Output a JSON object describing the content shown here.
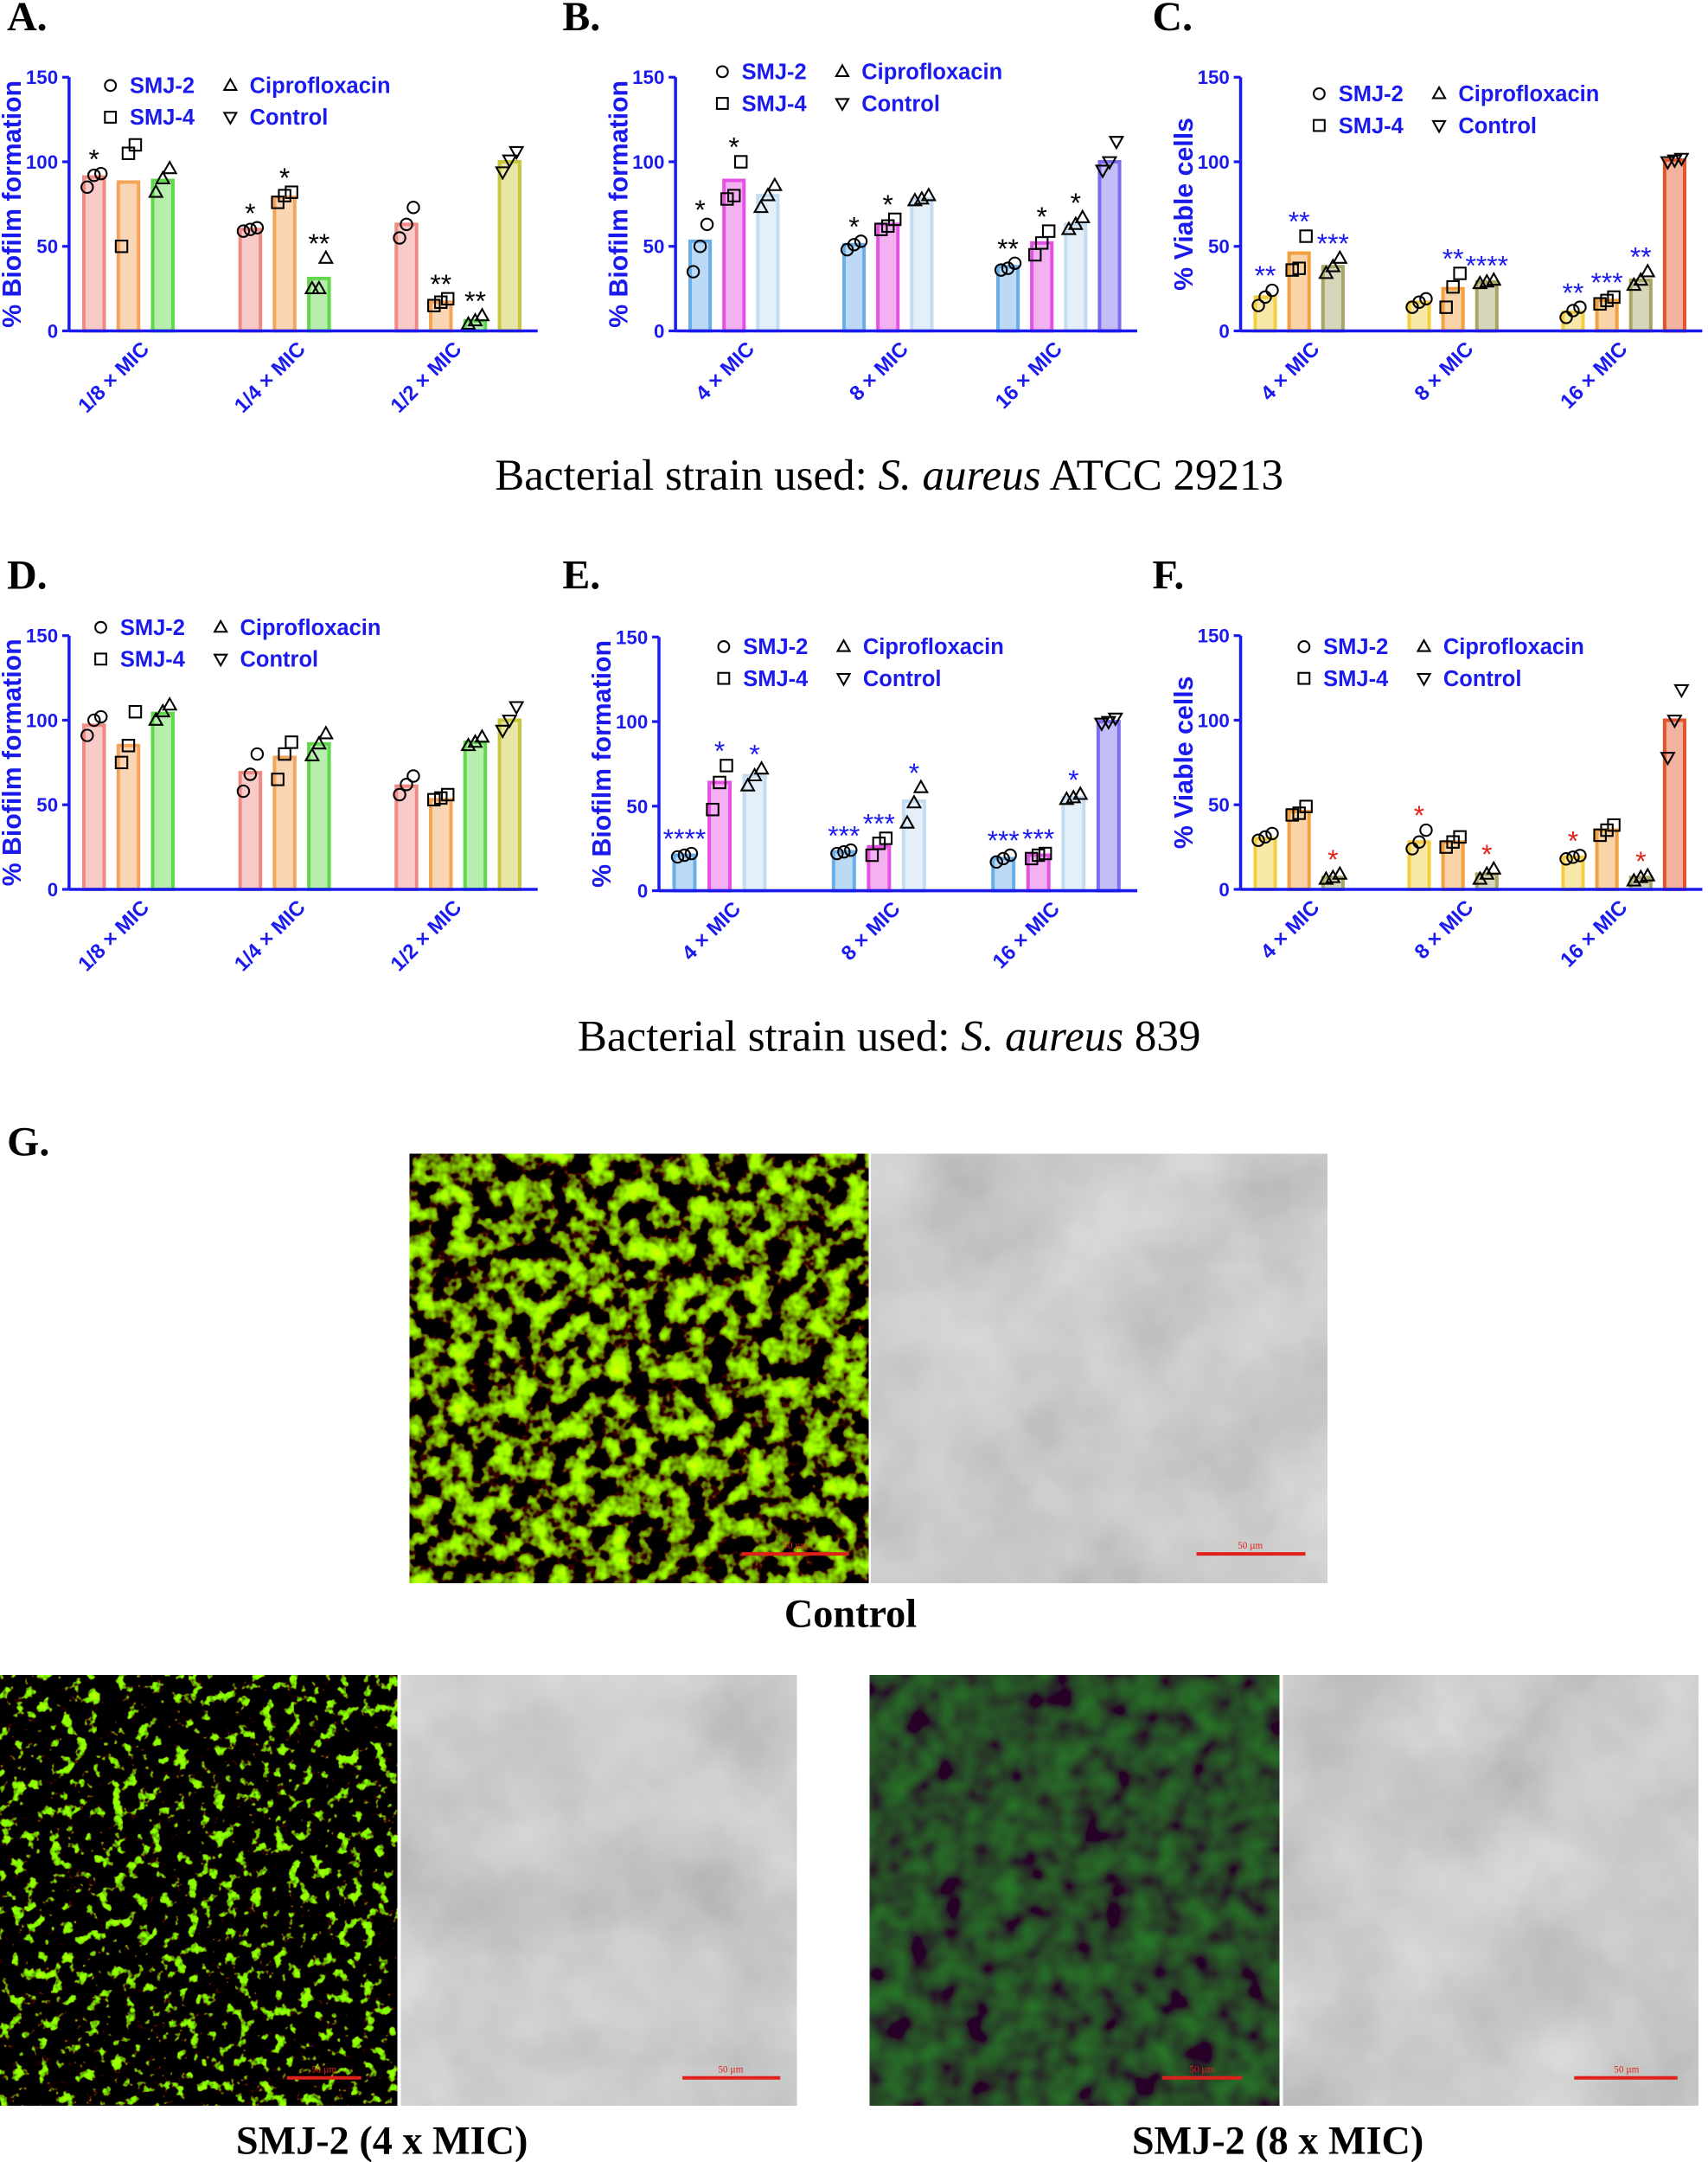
{
  "chart_data": [
    {
      "type": "bar",
      "label": "A.",
      "ylabel": "% Biofilm formation",
      "categories": [
        "1/8 × MIC",
        "1/4 × MIC",
        "1/2 × MIC"
      ],
      "ylim": [
        0,
        150
      ],
      "yticks": [
        0,
        50,
        100,
        150
      ],
      "axis_color": "#1a1aee",
      "annotation_color": "#000000",
      "series": [
        {
          "name": "SMJ-2",
          "marker": "circle",
          "color": "#f08a84",
          "values": [
            91,
            60,
            63
          ],
          "points": [
            [
              85,
              92,
              93
            ],
            [
              59,
              60,
              61
            ],
            [
              55,
              63,
              73
            ]
          ],
          "annotations": [
            "*",
            "*",
            null
          ]
        },
        {
          "name": "SMJ-4",
          "marker": "square",
          "color": "#f5a55a",
          "values": [
            88,
            79,
            17
          ],
          "points": [
            [
              50,
              105,
              110
            ],
            [
              76,
              80,
              82
            ],
            [
              15,
              17,
              19
            ]
          ],
          "annotations": [
            null,
            "*",
            "**"
          ]
        },
        {
          "name": "Ciprofloxacin",
          "marker": "triangle-up",
          "color": "#5fd84a",
          "values": [
            89,
            31,
            6
          ],
          "points": [
            [
              82,
              90,
              96
            ],
            [
              25,
              25,
              43
            ],
            [
              4,
              6,
              9
            ]
          ],
          "annotations": [
            null,
            "**",
            "**"
          ]
        },
        {
          "name": "Control",
          "marker": "triangle-down",
          "color": "#c9c83a",
          "values": [
            null,
            null,
            100
          ],
          "points": [
            null,
            null,
            [
              94,
              101,
              106
            ]
          ],
          "annotations": [
            null,
            null,
            null
          ]
        }
      ]
    },
    {
      "type": "bar",
      "label": "B.",
      "ylabel": "% Biofilm formation",
      "categories": [
        "4 × MIC",
        "8 × MIC",
        "16 × MIC"
      ],
      "ylim": [
        0,
        150
      ],
      "yticks": [
        0,
        50,
        100,
        150
      ],
      "axis_color": "#1a1aee",
      "annotation_color": "#000000",
      "series": [
        {
          "name": "SMJ-2",
          "marker": "circle",
          "color": "#6aaee8",
          "values": [
            53,
            51,
            38
          ],
          "points": [
            [
              35,
              50,
              63
            ],
            [
              48,
              51,
              53
            ],
            [
              36,
              37,
              40
            ]
          ],
          "annotations": [
            "*",
            "*",
            "**"
          ]
        },
        {
          "name": "SMJ-4",
          "marker": "square",
          "color": "#e552e3",
          "values": [
            89,
            63,
            52
          ],
          "points": [
            [
              78,
              80,
              100
            ],
            [
              60,
              62,
              66
            ],
            [
              45,
              52,
              59
            ]
          ],
          "annotations": [
            "*",
            "*",
            "*"
          ]
        },
        {
          "name": "Ciprofloxacin",
          "marker": "triangle-up",
          "color": "#c4dcf2",
          "values": [
            80,
            78,
            63
          ],
          "points": [
            [
              73,
              80,
              86
            ],
            [
              77,
              78,
              80
            ],
            [
              60,
              63,
              67
            ]
          ],
          "annotations": [
            null,
            null,
            "*"
          ]
        },
        {
          "name": "Control",
          "marker": "triangle-down",
          "color": "#7b6cf0",
          "values": [
            null,
            null,
            100
          ],
          "points": [
            null,
            null,
            [
              95,
              100,
              112
            ]
          ],
          "annotations": [
            null,
            null,
            null
          ]
        }
      ]
    },
    {
      "type": "bar",
      "label": "C.",
      "ylabel": "% Viable cells",
      "categories": [
        "4 × MIC",
        "8 × MIC",
        "16 × MIC"
      ],
      "ylim": [
        0,
        150
      ],
      "yticks": [
        0,
        50,
        100,
        150
      ],
      "axis_color": "#1a1aee",
      "annotation_color": "#1a1aee",
      "series": [
        {
          "name": "SMJ-2",
          "marker": "circle",
          "color": "#f2cf3e",
          "values": [
            20,
            17,
            11
          ],
          "points": [
            [
              15,
              20,
              24
            ],
            [
              14,
              17,
              19
            ],
            [
              8,
              12,
              14
            ]
          ],
          "annotations": [
            "**",
            null,
            "**"
          ]
        },
        {
          "name": "SMJ-4",
          "marker": "square",
          "color": "#f2a040",
          "values": [
            46,
            25,
            18
          ],
          "points": [
            [
              36,
              37,
              56
            ],
            [
              14,
              26,
              34
            ],
            [
              16,
              18,
              20
            ]
          ],
          "annotations": [
            "**",
            "**",
            "***"
          ]
        },
        {
          "name": "Ciprofloxacin",
          "marker": "triangle-up",
          "color": "#a8a565",
          "values": [
            38,
            29,
            30
          ],
          "points": [
            [
              34,
              38,
              43
            ],
            [
              28,
              29,
              30
            ],
            [
              27,
              30,
              35
            ]
          ],
          "annotations": [
            "***",
            "****",
            "**"
          ]
        },
        {
          "name": "Control",
          "marker": "triangle-down",
          "color": "#e2542a",
          "values": [
            null,
            null,
            101
          ],
          "points": [
            null,
            null,
            [
              100,
              101,
              102
            ]
          ],
          "annotations": [
            null,
            null,
            null
          ]
        }
      ]
    },
    {
      "type": "bar",
      "label": "D.",
      "ylabel": "% Biofilm formation",
      "categories": [
        "1/8 × MIC",
        "1/4 × MIC",
        "1/2 × MIC"
      ],
      "ylim": [
        0,
        150
      ],
      "yticks": [
        0,
        50,
        100,
        150
      ],
      "axis_color": "#1a1aee",
      "annotation_color": "#000000",
      "series": [
        {
          "name": "SMJ-2",
          "marker": "circle",
          "color": "#f08a84",
          "values": [
            97,
            69,
            61
          ],
          "points": [
            [
              91,
              100,
              102
            ],
            [
              58,
              68,
              80
            ],
            [
              56,
              62,
              67
            ]
          ],
          "annotations": [
            null,
            null,
            null
          ]
        },
        {
          "name": "SMJ-4",
          "marker": "square",
          "color": "#f5a55a",
          "values": [
            85,
            78,
            53
          ],
          "points": [
            [
              75,
              85,
              105
            ],
            [
              65,
              80,
              87
            ],
            [
              53,
              54,
              56
            ]
          ],
          "annotations": [
            null,
            null,
            null
          ]
        },
        {
          "name": "Ciprofloxacin",
          "marker": "triangle-up",
          "color": "#5fd84a",
          "values": [
            104,
            86,
            87
          ],
          "points": [
            [
              100,
              105,
              109
            ],
            [
              79,
              86,
              92
            ],
            [
              85,
              87,
              90
            ]
          ],
          "annotations": [
            null,
            null,
            null
          ]
        },
        {
          "name": "Control",
          "marker": "triangle-down",
          "color": "#c9c83a",
          "values": [
            null,
            null,
            100
          ],
          "points": [
            null,
            null,
            [
              94,
              100,
              108
            ]
          ],
          "annotations": [
            null,
            null,
            null
          ]
        }
      ]
    },
    {
      "type": "bar",
      "label": "E.",
      "ylabel": "% Biofilm formation",
      "categories": [
        "4 × MIC",
        "8 × MIC",
        "16 × MIC"
      ],
      "ylim": [
        0,
        150
      ],
      "yticks": [
        0,
        50,
        100,
        150
      ],
      "axis_color": "#1a1aee",
      "annotation_color": "#1a1aee",
      "series": [
        {
          "name": "SMJ-2",
          "marker": "circle",
          "color": "#6aaee8",
          "values": [
            21,
            23,
            19
          ],
          "points": [
            [
              20,
              21,
              22
            ],
            [
              22,
              23,
              24
            ],
            [
              17,
              19,
              21
            ]
          ],
          "annotations": [
            "****",
            "***",
            "***"
          ]
        },
        {
          "name": "SMJ-4",
          "marker": "square",
          "color": "#e552e3",
          "values": [
            64,
            26,
            21
          ],
          "points": [
            [
              48,
              64,
              74
            ],
            [
              21,
              28,
              31
            ],
            [
              19,
              21,
              22
            ]
          ],
          "annotations": [
            "*",
            "***",
            "***"
          ]
        },
        {
          "name": "Ciprofloxacin",
          "marker": "triangle-up",
          "color": "#c4dcf2",
          "values": [
            68,
            53,
            55
          ],
          "points": [
            [
              62,
              68,
              72
            ],
            [
              40,
              52,
              61
            ],
            [
              54,
              55,
              57
            ]
          ],
          "annotations": [
            "*",
            "*",
            "*"
          ]
        },
        {
          "name": "Control",
          "marker": "triangle-down",
          "color": "#7b6cf0",
          "values": [
            null,
            null,
            100
          ],
          "points": [
            null,
            null,
            [
              99,
              100,
              102
            ]
          ],
          "annotations": [
            null,
            null,
            null
          ]
        }
      ]
    },
    {
      "type": "bar",
      "label": "F.",
      "ylabel": "% Viable cells",
      "categories": [
        "4 × MIC",
        "8 × MIC",
        "16 × MIC"
      ],
      "ylim": [
        0,
        150
      ],
      "yticks": [
        0,
        50,
        100,
        150
      ],
      "axis_color": "#1a1aee",
      "annotation_color": "#e0201a",
      "series": [
        {
          "name": "SMJ-2",
          "marker": "circle",
          "color": "#f2cf3e",
          "values": [
            30,
            28,
            19
          ],
          "points": [
            [
              29,
              31,
              33
            ],
            [
              24,
              28,
              35
            ],
            [
              18,
              19,
              20
            ]
          ],
          "annotations": [
            null,
            "*",
            "*"
          ]
        },
        {
          "name": "SMJ-4",
          "marker": "square",
          "color": "#f2a040",
          "values": [
            46,
            28,
            35
          ],
          "points": [
            [
              44,
              45,
              49
            ],
            [
              25,
              28,
              31
            ],
            [
              32,
              35,
              38
            ]
          ],
          "annotations": [
            null,
            null,
            null
          ]
        },
        {
          "name": "Ciprofloxacin",
          "marker": "triangle-up",
          "color": "#a8a565",
          "values": [
            7,
            9,
            7
          ],
          "points": [
            [
              6,
              7,
              9
            ],
            [
              6,
              9,
              12
            ],
            [
              5,
              7,
              8
            ]
          ],
          "annotations": [
            "*",
            "*",
            "*"
          ]
        },
        {
          "name": "Control",
          "marker": "triangle-down",
          "color": "#e2542a",
          "values": [
            null,
            null,
            100
          ],
          "points": [
            null,
            null,
            [
              78,
              100,
              118
            ]
          ],
          "annotations": [
            null,
            null,
            null
          ]
        }
      ]
    }
  ],
  "strain_captions": [
    {
      "prefix": "Bacterial strain used: ",
      "species": "S. aureus",
      "strain": " ATCC 29213"
    },
    {
      "prefix": "Bacterial strain used: ",
      "species": "S. aureus",
      "strain": " 839"
    }
  ],
  "panel_g": {
    "label": "G.",
    "scale_bar": "50 µm",
    "captions": [
      "Control",
      "SMJ-2 (4 x MIC)",
      "SMJ-2 (8 x MIC)"
    ]
  }
}
